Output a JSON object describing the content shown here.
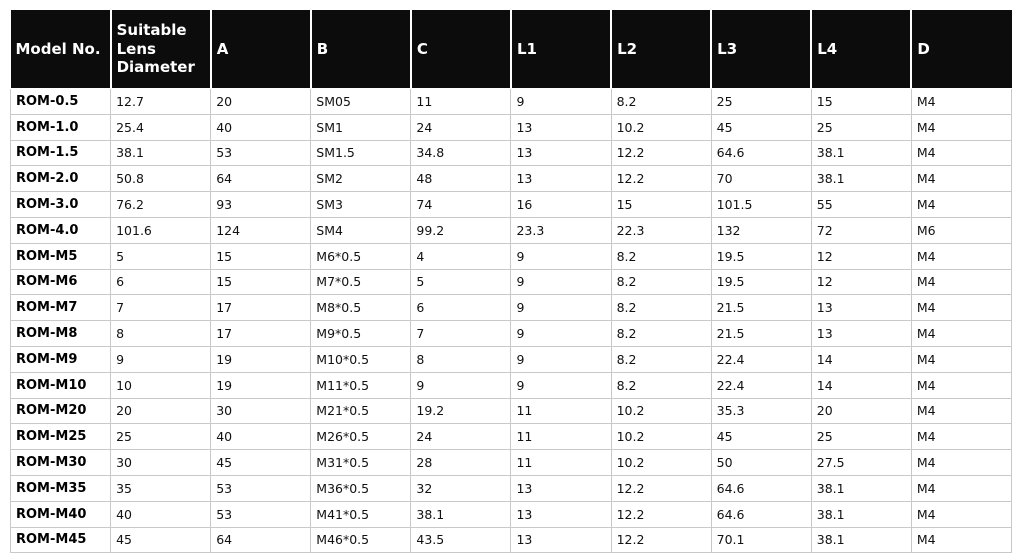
{
  "table": {
    "columns": [
      "Model No.",
      "Suitable Lens Diameter",
      "A",
      "B",
      "C",
      "L1",
      "L2",
      "L3",
      "L4",
      "D"
    ],
    "rows": [
      [
        "ROM-0.5",
        "12.7",
        "20",
        "SM05",
        "11",
        "9",
        "8.2",
        "25",
        "15",
        "M4"
      ],
      [
        "ROM-1.0",
        "25.4",
        "40",
        "SM1",
        "24",
        "13",
        "10.2",
        "45",
        "25",
        "M4"
      ],
      [
        "ROM-1.5",
        "38.1",
        "53",
        "SM1.5",
        "34.8",
        "13",
        "12.2",
        "64.6",
        "38.1",
        "M4"
      ],
      [
        "ROM-2.0",
        "50.8",
        "64",
        "SM2",
        "48",
        "13",
        "12.2",
        "70",
        "38.1",
        "M4"
      ],
      [
        "ROM-3.0",
        "76.2",
        "93",
        "SM3",
        "74",
        "16",
        "15",
        "101.5",
        "55",
        "M4"
      ],
      [
        "ROM-4.0",
        "101.6",
        "124",
        "SM4",
        "99.2",
        "23.3",
        "22.3",
        "132",
        "72",
        "M6"
      ],
      [
        "ROM-M5",
        "5",
        "15",
        "M6*0.5",
        "4",
        "9",
        "8.2",
        "19.5",
        "12",
        "M4"
      ],
      [
        "ROM-M6",
        "6",
        "15",
        "M7*0.5",
        "5",
        "9",
        "8.2",
        "19.5",
        "12",
        "M4"
      ],
      [
        "ROM-M7",
        "7",
        "17",
        "M8*0.5",
        "6",
        "9",
        "8.2",
        "21.5",
        "13",
        "M4"
      ],
      [
        "ROM-M8",
        "8",
        "17",
        "M9*0.5",
        "7",
        "9",
        "8.2",
        "21.5",
        "13",
        "M4"
      ],
      [
        "ROM-M9",
        "9",
        "19",
        "M10*0.5",
        "8",
        "9",
        "8.2",
        "22.4",
        "14",
        "M4"
      ],
      [
        "ROM-M10",
        "10",
        "19",
        "M11*0.5",
        "9",
        "9",
        "8.2",
        "22.4",
        "14",
        "M4"
      ],
      [
        "ROM-M20",
        "20",
        "30",
        "M21*0.5",
        "19.2",
        "11",
        "10.2",
        "35.3",
        "20",
        "M4"
      ],
      [
        "ROM-M25",
        "25",
        "40",
        "M26*0.5",
        "24",
        "11",
        "10.2",
        "45",
        "25",
        "M4"
      ],
      [
        "ROM-M30",
        "30",
        "45",
        "M31*0.5",
        "28",
        "11",
        "10.2",
        "50",
        "27.5",
        "M4"
      ],
      [
        "ROM-M35",
        "35",
        "53",
        "M36*0.5",
        "32",
        "13",
        "12.2",
        "64.6",
        "38.1",
        "M4"
      ],
      [
        "ROM-M40",
        "40",
        "53",
        "M41*0.5",
        "38.1",
        "13",
        "12.2",
        "64.6",
        "38.1",
        "M4"
      ],
      [
        "ROM-M45",
        "45",
        "64",
        "M46*0.5",
        "43.5",
        "13",
        "12.2",
        "70.1",
        "38.1",
        "M4"
      ]
    ],
    "colors": {
      "header_bg": "#0c0c0c",
      "header_text": "#ffffff",
      "row_bg": "#ffffff",
      "border": "#c9c9c9"
    }
  }
}
